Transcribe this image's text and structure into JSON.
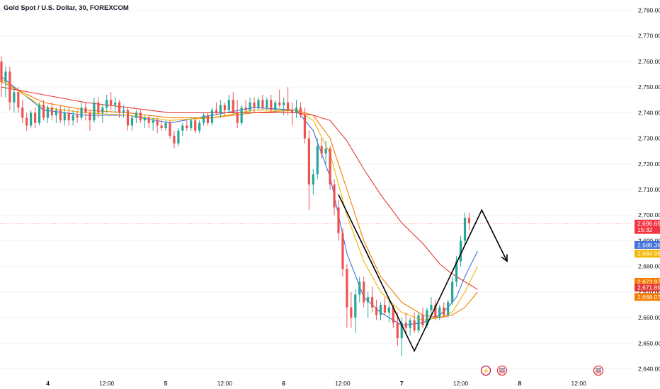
{
  "title": "Gold Spot / U.S. Dollar, 30, FOREXCOM",
  "colors": {
    "up": "#26a69a",
    "down": "#ef5350",
    "ma_blue": "#3f6fd8",
    "ma_yellow": "#f2b705",
    "ma_orange": "#f57c00",
    "ma_red": "#e53935",
    "price_badge": "#f23645",
    "grid": "#f0f3fa"
  },
  "chart_data": {
    "type": "candlestick",
    "ylim": [
      2636,
      2784
    ],
    "y_ticks": [
      {
        "value": 2780,
        "label": "2,780.00"
      },
      {
        "value": 2770,
        "label": "2,770.00"
      },
      {
        "value": 2760,
        "label": "2,760.00"
      },
      {
        "value": 2750,
        "label": "2,750.00"
      },
      {
        "value": 2740,
        "label": "2,740.00"
      },
      {
        "value": 2730,
        "label": "2,730.00"
      },
      {
        "value": 2720,
        "label": "2,720.00"
      },
      {
        "value": 2710,
        "label": "2,710.00"
      },
      {
        "value": 2700,
        "label": "2,700.00"
      },
      {
        "value": 2690,
        "label": "2,690.00"
      },
      {
        "value": 2680,
        "label": "2,680.00"
      },
      {
        "value": 2670,
        "label": "2,670.00"
      },
      {
        "value": 2660,
        "label": "2,660.00"
      },
      {
        "value": 2650,
        "label": "2,650.00"
      },
      {
        "value": 2640,
        "label": "2,640.00"
      }
    ],
    "x_ticks": [
      {
        "bar": 11,
        "label": "4"
      },
      {
        "bar": 25,
        "label": "12:00"
      },
      {
        "bar": 39,
        "label": "5"
      },
      {
        "bar": 53,
        "label": "12:00"
      },
      {
        "bar": 67,
        "label": "6"
      },
      {
        "bar": 81,
        "label": "12:00"
      },
      {
        "bar": 95,
        "label": "7"
      },
      {
        "bar": 109,
        "label": "12:00"
      },
      {
        "bar": 123,
        "label": "8"
      },
      {
        "bar": 137,
        "label": "12:00"
      }
    ],
    "candles": [
      [
        2760.0,
        2762.0,
        2746.0,
        2752.0
      ],
      [
        2752.0,
        2758.0,
        2746.0,
        2756.0
      ],
      [
        2756.0,
        2758.0,
        2741.0,
        2744.0
      ],
      [
        2744.0,
        2750.0,
        2740.0,
        2748.0
      ],
      [
        2748.0,
        2750.0,
        2740.0,
        2742.0
      ],
      [
        2742.0,
        2745.0,
        2736.0,
        2738.0
      ],
      [
        2738.0,
        2740.0,
        2733.0,
        2735.0
      ],
      [
        2735.0,
        2741.0,
        2734.0,
        2740.0
      ],
      [
        2740.0,
        2742.0,
        2734.0,
        2736.0
      ],
      [
        2736.0,
        2744.0,
        2735.0,
        2743.0
      ],
      [
        2743.0,
        2745.0,
        2737.0,
        2738.0
      ],
      [
        2738.0,
        2743.0,
        2736.0,
        2742.0
      ],
      [
        2742.0,
        2744.0,
        2737.0,
        2739.0
      ],
      [
        2739.0,
        2742.0,
        2736.0,
        2741.0
      ],
      [
        2741.0,
        2743.0,
        2736.0,
        2737.0
      ],
      [
        2737.0,
        2742.0,
        2735.0,
        2740.0
      ],
      [
        2740.0,
        2742.0,
        2735.0,
        2737.0
      ],
      [
        2737.0,
        2741.0,
        2735.0,
        2739.0
      ],
      [
        2739.0,
        2741.0,
        2736.0,
        2738.0
      ],
      [
        2738.0,
        2744.0,
        2737.0,
        2742.0
      ],
      [
        2742.0,
        2744.0,
        2737.0,
        2740.0
      ],
      [
        2740.0,
        2741.0,
        2733.0,
        2737.0
      ],
      [
        2737.0,
        2746.0,
        2736.0,
        2744.0
      ],
      [
        2744.0,
        2746.0,
        2738.0,
        2740.0
      ],
      [
        2740.0,
        2743.0,
        2736.0,
        2742.0
      ],
      [
        2742.0,
        2747.0,
        2740.0,
        2745.0
      ],
      [
        2745.0,
        2748.0,
        2741.0,
        2743.0
      ],
      [
        2743.0,
        2746.0,
        2740.0,
        2744.0
      ],
      [
        2744.0,
        2745.0,
        2738.0,
        2740.0
      ],
      [
        2740.0,
        2743.0,
        2738.0,
        2741.0
      ],
      [
        2741.0,
        2742.0,
        2733.0,
        2735.0
      ],
      [
        2735.0,
        2739.0,
        2733.0,
        2738.0
      ],
      [
        2738.0,
        2741.0,
        2736.0,
        2740.0
      ],
      [
        2740.0,
        2741.0,
        2736.0,
        2737.0
      ],
      [
        2737.0,
        2739.0,
        2734.0,
        2738.0
      ],
      [
        2738.0,
        2739.0,
        2734.0,
        2736.0
      ],
      [
        2736.0,
        2738.0,
        2733.0,
        2737.0
      ],
      [
        2737.0,
        2738.0,
        2732.0,
        2735.0
      ],
      [
        2735.0,
        2737.0,
        2733.0,
        2734.0
      ],
      [
        2734.0,
        2737.0,
        2733.0,
        2736.0
      ],
      [
        2736.0,
        2737.0,
        2730.0,
        2731.0
      ],
      [
        2731.0,
        2733.0,
        2726.0,
        2728.0
      ],
      [
        2728.0,
        2734.0,
        2727.0,
        2733.0
      ],
      [
        2733.0,
        2736.0,
        2731.0,
        2735.0
      ],
      [
        2735.0,
        2737.0,
        2733.0,
        2734.0
      ],
      [
        2734.0,
        2738.0,
        2733.0,
        2737.0
      ],
      [
        2737.0,
        2738.0,
        2732.0,
        2733.0
      ],
      [
        2733.0,
        2737.0,
        2732.0,
        2736.0
      ],
      [
        2736.0,
        2740.0,
        2735.0,
        2739.0
      ],
      [
        2739.0,
        2740.0,
        2735.0,
        2736.0
      ],
      [
        2736.0,
        2742.0,
        2735.0,
        2741.0
      ],
      [
        2741.0,
        2744.0,
        2739.0,
        2740.0
      ],
      [
        2740.0,
        2745.0,
        2738.0,
        2743.0
      ],
      [
        2743.0,
        2744.0,
        2739.0,
        2741.0
      ],
      [
        2741.0,
        2747.0,
        2740.0,
        2745.0
      ],
      [
        2745.0,
        2748.0,
        2739.0,
        2740.0
      ],
      [
        2740.0,
        2745.0,
        2734.0,
        2736.0
      ],
      [
        2736.0,
        2743.0,
        2735.0,
        2742.0
      ],
      [
        2742.0,
        2745.0,
        2740.0,
        2741.0
      ],
      [
        2741.0,
        2746.0,
        2740.0,
        2744.0
      ],
      [
        2744.0,
        2746.0,
        2740.0,
        2742.0
      ],
      [
        2742.0,
        2746.0,
        2741.0,
        2745.0
      ],
      [
        2745.0,
        2747.0,
        2741.0,
        2742.0
      ],
      [
        2742.0,
        2746.0,
        2741.0,
        2745.0
      ],
      [
        2745.0,
        2747.0,
        2740.0,
        2741.0
      ],
      [
        2741.0,
        2745.0,
        2740.0,
        2744.0
      ],
      [
        2744.0,
        2749.0,
        2742.0,
        2743.0
      ],
      [
        2743.0,
        2746.0,
        2739.0,
        2744.0
      ],
      [
        2744.0,
        2750.0,
        2739.0,
        2741.0
      ],
      [
        2741.0,
        2744.0,
        2735.0,
        2740.0
      ],
      [
        2740.0,
        2745.0,
        2738.0,
        2742.0
      ],
      [
        2742.0,
        2744.0,
        2738.0,
        2739.0
      ],
      [
        2739.0,
        2742.0,
        2728.0,
        2730.0
      ],
      [
        2730.0,
        2733.0,
        2702.0,
        2712.0
      ],
      [
        2712.0,
        2718.0,
        2708.0,
        2716.0
      ],
      [
        2716.0,
        2730.0,
        2714.0,
        2727.0
      ],
      [
        2727.0,
        2730.0,
        2722.0,
        2724.0
      ],
      [
        2724.0,
        2729.0,
        2720.0,
        2726.0
      ],
      [
        2726.0,
        2727.0,
        2710.0,
        2712.0
      ],
      [
        2712.0,
        2714.0,
        2700.0,
        2703.0
      ],
      [
        2703.0,
        2706.0,
        2690.0,
        2693.0
      ],
      [
        2693.0,
        2695.0,
        2676.0,
        2679.0
      ],
      [
        2679.0,
        2681.0,
        2656.0,
        2664.0
      ],
      [
        2664.0,
        2670.0,
        2656.0,
        2660.0
      ],
      [
        2660.0,
        2671.0,
        2654.0,
        2669.0
      ],
      [
        2669.0,
        2676.0,
        2666.0,
        2674.0
      ],
      [
        2674.0,
        2676.0,
        2664.0,
        2666.0
      ],
      [
        2666.0,
        2670.0,
        2660.0,
        2668.0
      ],
      [
        2668.0,
        2672.0,
        2662.0,
        2664.0
      ],
      [
        2664.0,
        2667.0,
        2659.0,
        2661.0
      ],
      [
        2661.0,
        2666.0,
        2659.0,
        2665.0
      ],
      [
        2665.0,
        2668.0,
        2661.0,
        2662.0
      ],
      [
        2662.0,
        2667.0,
        2658.0,
        2664.0
      ],
      [
        2664.0,
        2665.0,
        2656.0,
        2658.0
      ],
      [
        2658.0,
        2662.0,
        2649.0,
        2652.0
      ],
      [
        2652.0,
        2660.0,
        2645.0,
        2658.0
      ],
      [
        2658.0,
        2662.0,
        2654.0,
        2656.0
      ],
      [
        2656.0,
        2660.0,
        2653.0,
        2659.0
      ],
      [
        2659.0,
        2662.0,
        2654.0,
        2655.0
      ],
      [
        2655.0,
        2662.0,
        2654.0,
        2661.0
      ],
      [
        2661.0,
        2664.0,
        2656.0,
        2657.0
      ],
      [
        2657.0,
        2664.0,
        2656.0,
        2663.0
      ],
      [
        2663.0,
        2668.0,
        2660.0,
        2665.0
      ],
      [
        2665.0,
        2667.0,
        2659.0,
        2660.0
      ],
      [
        2660.0,
        2665.0,
        2659.0,
        2664.0
      ],
      [
        2664.0,
        2666.0,
        2660.0,
        2661.0
      ],
      [
        2661.0,
        2667.0,
        2660.0,
        2666.0
      ],
      [
        2666.0,
        2676.0,
        2665.0,
        2674.0
      ],
      [
        2674.0,
        2684.0,
        2672.0,
        2682.0
      ],
      [
        2682.0,
        2692.0,
        2680.0,
        2690.0
      ],
      [
        2690.0,
        2701.0,
        2688.0,
        2699.0
      ],
      [
        2699.0,
        2701.0,
        2694.0,
        2697.0
      ]
    ],
    "moving_averages": [
      {
        "color_key": "ma_blue",
        "points": [
          [
            0,
            2754
          ],
          [
            10,
            2741
          ],
          [
            20,
            2739
          ],
          [
            30,
            2739
          ],
          [
            40,
            2736
          ],
          [
            50,
            2739
          ],
          [
            60,
            2742
          ],
          [
            70,
            2741
          ],
          [
            74,
            2733
          ],
          [
            78,
            2715
          ],
          [
            82,
            2685
          ],
          [
            86,
            2668
          ],
          [
            90,
            2662
          ],
          [
            95,
            2657
          ],
          [
            100,
            2658
          ],
          [
            104,
            2661
          ],
          [
            106,
            2664
          ],
          [
            108,
            2668
          ],
          [
            110,
            2676
          ],
          [
            113,
            2686
          ]
        ]
      },
      {
        "color_key": "ma_yellow",
        "points": [
          [
            0,
            2753
          ],
          [
            10,
            2742
          ],
          [
            20,
            2740
          ],
          [
            30,
            2739
          ],
          [
            40,
            2737
          ],
          [
            50,
            2738
          ],
          [
            60,
            2741
          ],
          [
            70,
            2741
          ],
          [
            74,
            2737
          ],
          [
            78,
            2724
          ],
          [
            82,
            2700
          ],
          [
            86,
            2682
          ],
          [
            90,
            2670
          ],
          [
            95,
            2662
          ],
          [
            100,
            2659
          ],
          [
            104,
            2660
          ],
          [
            107,
            2662
          ],
          [
            110,
            2670
          ],
          [
            113,
            2680
          ]
        ]
      },
      {
        "color_key": "ma_orange",
        "points": [
          [
            0,
            2752
          ],
          [
            10,
            2744
          ],
          [
            20,
            2741
          ],
          [
            30,
            2740
          ],
          [
            40,
            2738
          ],
          [
            50,
            2738
          ],
          [
            60,
            2740
          ],
          [
            70,
            2741
          ],
          [
            74,
            2739
          ],
          [
            78,
            2730
          ],
          [
            82,
            2710
          ],
          [
            86,
            2690
          ],
          [
            90,
            2676
          ],
          [
            95,
            2666
          ],
          [
            100,
            2661
          ],
          [
            104,
            2660
          ],
          [
            107,
            2661
          ],
          [
            110,
            2664
          ],
          [
            113,
            2670
          ]
        ]
      },
      {
        "color_key": "ma_red",
        "points": [
          [
            0,
            2750
          ],
          [
            10,
            2747
          ],
          [
            20,
            2744
          ],
          [
            30,
            2742
          ],
          [
            40,
            2740
          ],
          [
            50,
            2740
          ],
          [
            60,
            2740
          ],
          [
            70,
            2740
          ],
          [
            74,
            2739
          ],
          [
            78,
            2737
          ],
          [
            82,
            2729
          ],
          [
            86,
            2718
          ],
          [
            90,
            2708
          ],
          [
            95,
            2697
          ],
          [
            100,
            2689
          ],
          [
            104,
            2681
          ],
          [
            107,
            2677
          ],
          [
            110,
            2674
          ],
          [
            113,
            2671
          ]
        ]
      }
    ],
    "drawn_path": [
      [
        80,
        2708
      ],
      [
        98,
        2647
      ],
      [
        114,
        2702
      ],
      [
        120,
        2682
      ]
    ],
    "price_labels": [
      {
        "value": 2696.69,
        "text": "2,696.69",
        "sub": "15:32",
        "color_key": "price_badge"
      },
      {
        "value": 2688.36,
        "text": "2,688.36",
        "color_key": "ma_blue"
      },
      {
        "value": 2684.95,
        "text": "2,684.95",
        "color_key": "ma_yellow"
      },
      {
        "value": 2673.97,
        "text": "2,673.97",
        "color_key": "ma_orange"
      },
      {
        "value": 2671.69,
        "text": "2,671.69",
        "color_key": "ma_red"
      },
      {
        "value": 2668.07,
        "text": "2,668.07",
        "color_key": "ma_orange"
      }
    ],
    "current_price": 2696.69
  }
}
